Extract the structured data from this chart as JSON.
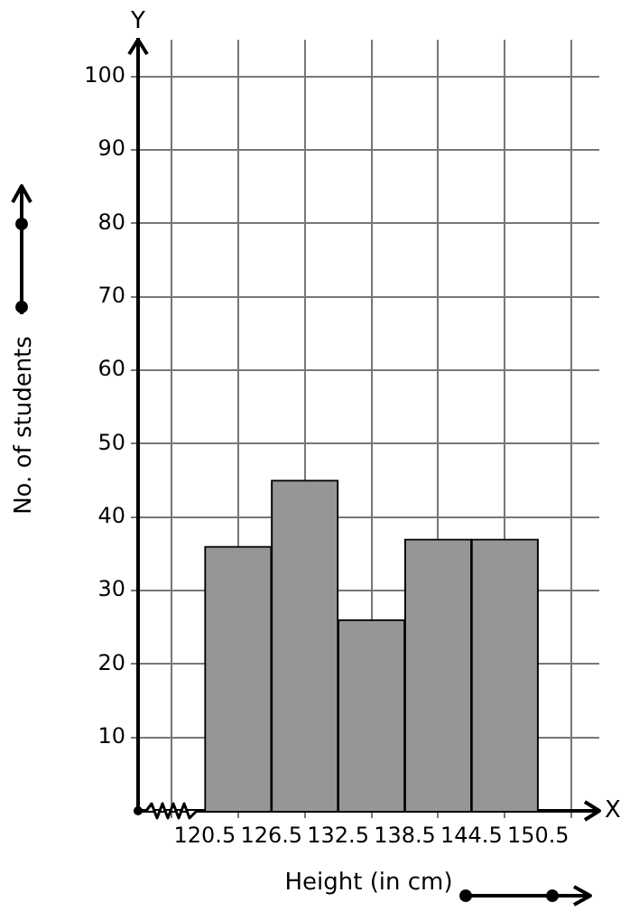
{
  "chart_data": {
    "type": "histogram",
    "xlabel": "Height (in cm)",
    "ylabel": "No. of students",
    "bins": [
      120.5,
      126.5,
      132.5,
      138.5,
      144.5,
      150.5
    ],
    "values": [
      36,
      45,
      26,
      37,
      37
    ],
    "color": "#969696",
    "xlim": [
      114.5,
      156
    ],
    "xticks": [
      120.5,
      126.5,
      132.5,
      138.5,
      144.5,
      150.5
    ],
    "ylim": [
      0,
      105
    ],
    "yticks": [
      10,
      20,
      30,
      40,
      50,
      60,
      70,
      80,
      90,
      100
    ],
    "grid": true,
    "annotations": [
      "Y",
      "X"
    ]
  }
}
